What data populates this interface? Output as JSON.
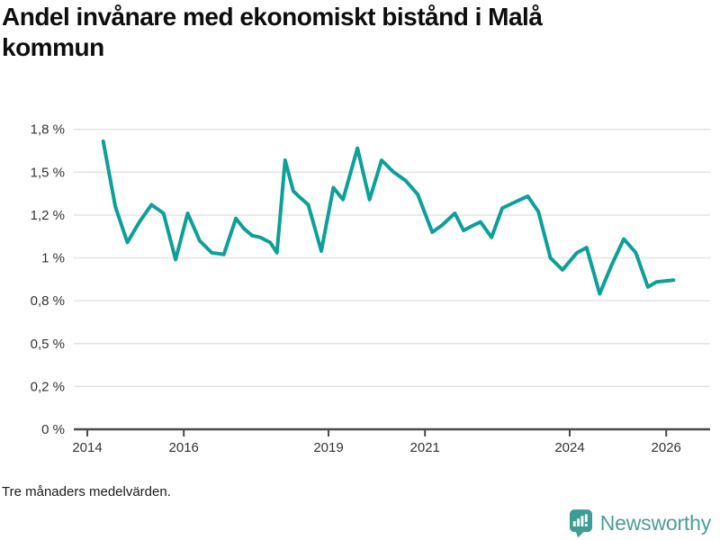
{
  "header": {
    "title": "Andel invånare med ekonomiskt bistånd i Malå kommun"
  },
  "footer": {
    "note": "Tre månaders medelvärden."
  },
  "branding": {
    "name": "Newsworthy",
    "icon": "speech-bubble-bar-chart-exclamation",
    "icon_color": "#3E9C94",
    "text_color": "#4E9E97"
  },
  "chart_data": {
    "type": "line",
    "title": "Andel invånare med ekonomiskt bistånd i Malå kommun",
    "xlabel": "",
    "ylabel": "",
    "unit": "%",
    "grid": true,
    "legend": "none",
    "line_color": "#0CA098",
    "line_width": 4,
    "grid_color": "#e3e3e3",
    "axis_color": "#4a4a4a",
    "tick_text_color": "#333333",
    "xlim": [
      2013.72,
      2026.91
    ],
    "ylim": [
      0,
      1.78
    ],
    "x_ticks": [
      2014,
      2016,
      2019,
      2021,
      2024,
      2026
    ],
    "y_ticks": [
      {
        "value": 0,
        "label": "0 %"
      },
      {
        "value": 0.25,
        "label": "0,2 %"
      },
      {
        "value": 0.5,
        "label": "0,5 %"
      },
      {
        "value": 0.75,
        "label": "0,8 %"
      },
      {
        "value": 1,
        "label": "1 %"
      },
      {
        "value": 1.25,
        "label": "1,2 %"
      },
      {
        "value": 1.5,
        "label": "1,5 %"
      },
      {
        "value": 1.75,
        "label": "1,8 %"
      }
    ],
    "series": [
      {
        "name": "Andel invånare med ekonomiskt bistånd",
        "points": [
          [
            2014.33,
            1.68
          ],
          [
            2014.58,
            1.3
          ],
          [
            2014.83,
            1.09
          ],
          [
            2015.08,
            1.21
          ],
          [
            2015.33,
            1.31
          ],
          [
            2015.58,
            1.26
          ],
          [
            2015.83,
            0.99
          ],
          [
            2016.08,
            1.26
          ],
          [
            2016.33,
            1.1
          ],
          [
            2016.58,
            1.03
          ],
          [
            2016.83,
            1.02
          ],
          [
            2017.08,
            1.23
          ],
          [
            2017.25,
            1.17
          ],
          [
            2017.42,
            1.13
          ],
          [
            2017.58,
            1.12
          ],
          [
            2017.79,
            1.09
          ],
          [
            2017.93,
            1.03
          ],
          [
            2018.1,
            1.57
          ],
          [
            2018.27,
            1.39
          ],
          [
            2018.42,
            1.35
          ],
          [
            2018.58,
            1.31
          ],
          [
            2018.85,
            1.04
          ],
          [
            2019.1,
            1.41
          ],
          [
            2019.3,
            1.34
          ],
          [
            2019.6,
            1.64
          ],
          [
            2019.85,
            1.34
          ],
          [
            2020.1,
            1.57
          ],
          [
            2020.35,
            1.5
          ],
          [
            2020.6,
            1.45
          ],
          [
            2020.85,
            1.37
          ],
          [
            2021.15,
            1.15
          ],
          [
            2021.35,
            1.19
          ],
          [
            2021.62,
            1.26
          ],
          [
            2021.8,
            1.16
          ],
          [
            2022.0,
            1.19
          ],
          [
            2022.15,
            1.21
          ],
          [
            2022.38,
            1.12
          ],
          [
            2022.6,
            1.29
          ],
          [
            2022.75,
            1.31
          ],
          [
            2023.13,
            1.36
          ],
          [
            2023.35,
            1.27
          ],
          [
            2023.6,
            1.0
          ],
          [
            2023.85,
            0.93
          ],
          [
            2024.15,
            1.03
          ],
          [
            2024.35,
            1.06
          ],
          [
            2024.62,
            0.79
          ],
          [
            2024.87,
            0.96
          ],
          [
            2025.12,
            1.11
          ],
          [
            2025.37,
            1.03
          ],
          [
            2025.62,
            0.83
          ],
          [
            2025.8,
            0.86
          ],
          [
            2026.15,
            0.87
          ]
        ]
      }
    ]
  }
}
